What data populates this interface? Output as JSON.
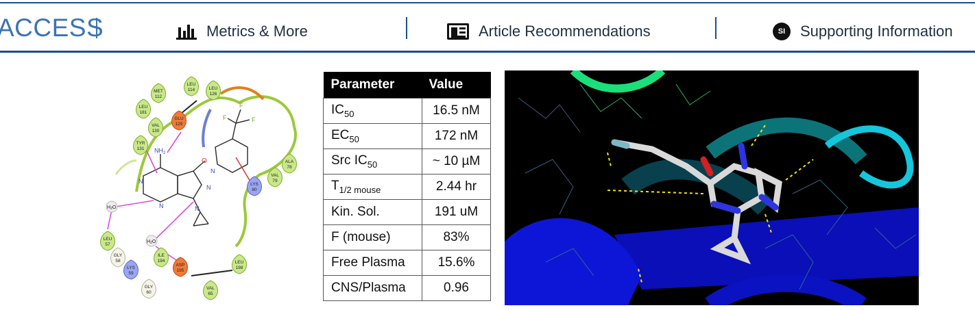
{
  "header": {
    "access_label": "ACCESS",
    "tabs": [
      {
        "label": "Metrics & More",
        "icon": "bar-chart-icon"
      },
      {
        "label": "Article Recommendations",
        "icon": "article-icon"
      },
      {
        "label": "Supporting Information",
        "icon": "si-icon",
        "icon_text": "SI"
      }
    ],
    "accent_color": "#1a4f86"
  },
  "figure": {
    "interaction_residues": [
      {
        "name": "MET",
        "num": "112"
      },
      {
        "name": "LEU",
        "num": "114"
      },
      {
        "name": "LEU",
        "num": "126"
      },
      {
        "name": "LEU",
        "num": "181"
      },
      {
        "name": "GLU",
        "num": "129"
      },
      {
        "name": "VAL",
        "num": "130"
      },
      {
        "name": "TYR",
        "num": "131"
      },
      {
        "name": "ALA",
        "num": "78"
      },
      {
        "name": "VAL",
        "num": "79"
      },
      {
        "name": "LYS",
        "num": "80"
      },
      {
        "name": "LEU",
        "num": "57"
      },
      {
        "name": "GLY",
        "num": "58"
      },
      {
        "name": "LYS",
        "num": "59"
      },
      {
        "name": "GLY",
        "num": "60"
      },
      {
        "name": "ILE",
        "num": "194"
      },
      {
        "name": "ASP",
        "num": "195"
      },
      {
        "name": "LEU",
        "num": "198"
      },
      {
        "name": "VAL",
        "num": "65"
      }
    ],
    "ligand_labels": {
      "nh2": "NH",
      "nh2_sub": "2",
      "o": "O",
      "n": "N",
      "f": "F",
      "h2o": "H",
      "h2o_sub": "2",
      "h2o_o": "O"
    },
    "table": {
      "headers": [
        "Parameter",
        "Value"
      ],
      "rows": [
        {
          "param": "IC",
          "sub": "50",
          "value": "16.5 nM"
        },
        {
          "param": "EC",
          "sub": "50",
          "value": "172 nM"
        },
        {
          "param": "Src IC",
          "sub": "50",
          "value": "~ 10 µM"
        },
        {
          "param": "T",
          "sub": "1/2 mouse",
          "value": "2.44 hr"
        },
        {
          "param": "Kin. Sol.",
          "sub": "",
          "value": "191 uM"
        },
        {
          "param": "F (mouse)",
          "sub": "",
          "value": "83%"
        },
        {
          "param": "Free Plasma",
          "sub": "",
          "value": "15.6%"
        },
        {
          "param": "CNS/Plasma",
          "sub": "",
          "value": "0.96"
        }
      ]
    }
  }
}
